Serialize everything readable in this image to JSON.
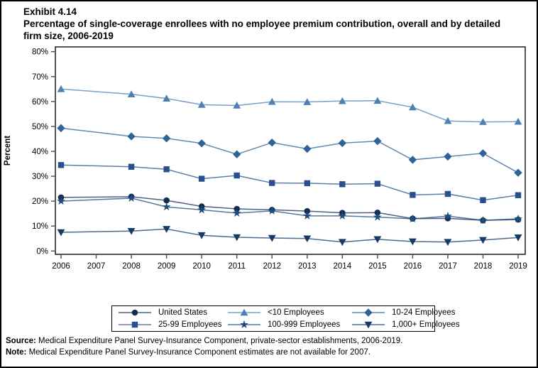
{
  "page": {
    "exhibit_label": "Exhibit 4.14",
    "title": "Percentage of single-coverage enrollees with no employee premium contribution, overall and by detailed firm size, 2006-2019",
    "source_label": "Source:",
    "source_text": " Medical Expenditure Panel Survey-Insurance Component, private-sector establishments, 2006-2019.",
    "note_label": "Note:",
    "note_text": " Medical Expenditure Panel Survey-Insurance Component estimates are not available for 2007."
  },
  "chart_data": {
    "type": "line",
    "title": "Percentage of single-coverage enrollees with no employee premium contribution, overall and by detailed firm size, 2006-2019",
    "xlabel": "",
    "ylabel": "Percent",
    "ylim": [
      0,
      80
    ],
    "ytick_step": 10,
    "y_tick_labels": [
      "0%",
      "10%",
      "20%",
      "30%",
      "40%",
      "50%",
      "60%",
      "70%",
      "80%"
    ],
    "x": [
      2006,
      2007,
      2008,
      2009,
      2010,
      2011,
      2012,
      2013,
      2014,
      2015,
      2016,
      2017,
      2018,
      2019
    ],
    "x_tick_labels": [
      "2006",
      "2007",
      "2008",
      "2009",
      "2010",
      "2011",
      "2012",
      "2013",
      "2014",
      "2015",
      "2016",
      "2017",
      "2018",
      "2019"
    ],
    "grid": false,
    "legend_position": "bottom",
    "note": "2007 estimates not available; lines connect 2006 directly to 2008",
    "series": [
      {
        "name": "United States",
        "marker": "circle",
        "color": "#132E54",
        "values": [
          21.5,
          null,
          21.8,
          20.3,
          17.9,
          16.9,
          16.5,
          16.0,
          15.3,
          15.4,
          13.0,
          13.1,
          12.3,
          12.6
        ]
      },
      {
        "name": "<10 Employees",
        "marker": "triangle-up",
        "color": "#4E80B6",
        "values": [
          65.0,
          null,
          62.9,
          61.2,
          58.7,
          58.4,
          59.9,
          59.8,
          60.2,
          60.3,
          57.7,
          52.2,
          51.8,
          51.9
        ]
      },
      {
        "name": "10-24 Employees",
        "marker": "diamond",
        "color": "#2D6396",
        "values": [
          49.3,
          null,
          46.0,
          45.2,
          43.2,
          38.8,
          43.5,
          41.0,
          43.3,
          44.1,
          36.6,
          37.9,
          39.2,
          31.4
        ]
      },
      {
        "name": "25-99 Employees",
        "marker": "square",
        "color": "#27508F",
        "values": [
          34.5,
          null,
          33.8,
          32.8,
          29.0,
          30.3,
          27.3,
          27.2,
          26.8,
          27.0,
          22.5,
          22.9,
          20.4,
          22.4
        ]
      },
      {
        "name": "100-999 Employees",
        "marker": "star",
        "color": "#1E4C7C",
        "values": [
          20.0,
          null,
          21.2,
          17.7,
          16.5,
          15.2,
          16.1,
          14.1,
          14.1,
          13.6,
          12.9,
          14.0,
          12.3,
          12.9
        ]
      },
      {
        "name": "1,000+ Employees",
        "marker": "triangle-down",
        "color": "#173A66",
        "values": [
          7.5,
          null,
          8.0,
          8.8,
          6.3,
          5.5,
          5.2,
          5.0,
          3.6,
          4.7,
          3.8,
          3.6,
          4.4,
          5.4
        ]
      }
    ]
  }
}
